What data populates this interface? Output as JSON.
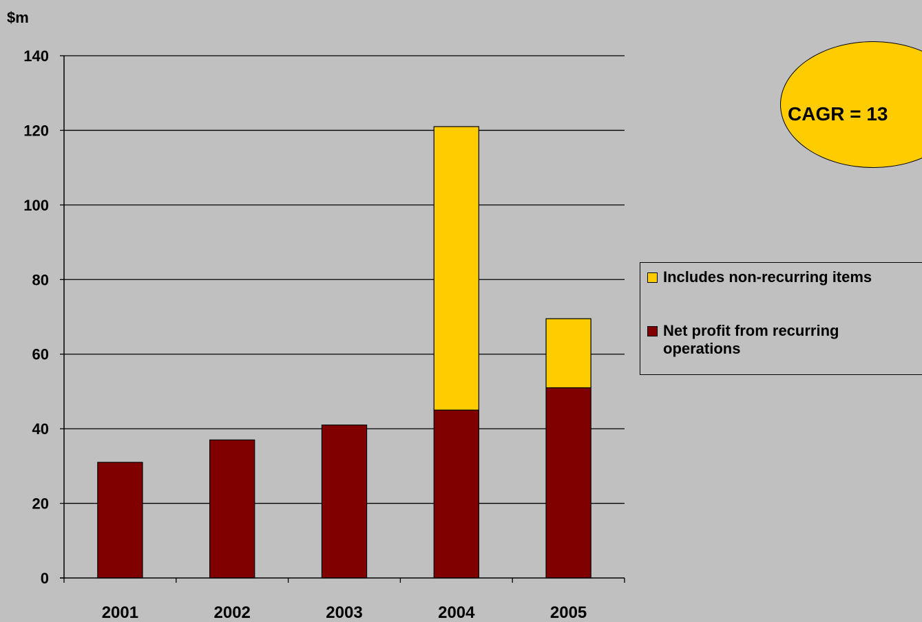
{
  "chart_data": {
    "type": "bar",
    "stacked": true,
    "ylabel": "$m",
    "ylim": [
      0,
      140
    ],
    "yticks": [
      "0",
      "20",
      "40",
      "60",
      "80",
      "100",
      "120",
      "140"
    ],
    "categories": [
      "2001",
      "2002",
      "2003",
      "2004",
      "2005"
    ],
    "series": [
      {
        "name": "Net profit from recurring operations",
        "values": [
          31,
          37,
          41,
          45,
          51
        ],
        "color": "#800000"
      },
      {
        "name": "Includes non-recurring items",
        "values": [
          0,
          0,
          0,
          76,
          18.5
        ],
        "color": "#ffcc00"
      }
    ],
    "grid": true,
    "legend": "right"
  },
  "legend": {
    "items": [
      {
        "label": "Includes non-recurring items",
        "color": "#ffcc00"
      },
      {
        "label": "Net profit from recurring operations",
        "color": "#800000"
      }
    ]
  },
  "badge": {
    "text": "CAGR = 13",
    "color": "#ffcc00"
  }
}
